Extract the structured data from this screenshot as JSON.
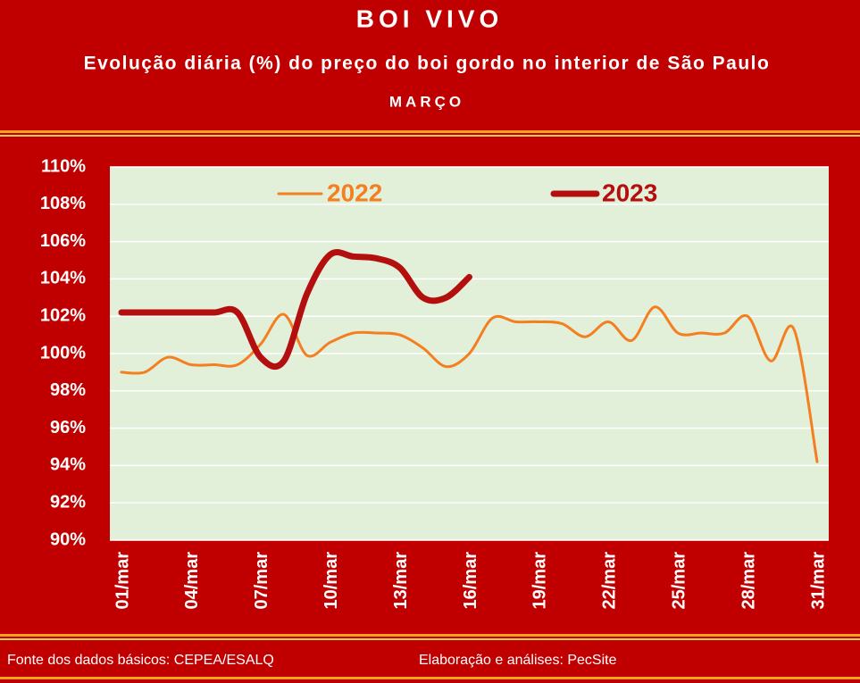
{
  "chart_data": {
    "type": "line",
    "title": "BOI VIVO",
    "subtitle": "Evolução diária (%) do preço do boi gordo no interior de São Paulo",
    "period": "MARÇO",
    "source": "Fonte dos dados básicos: CEPEA/ESALQ",
    "credit": "Elaboração e análises: PecSite",
    "categories": [
      "01/mar",
      null,
      null,
      "04/mar",
      null,
      null,
      "07/mar",
      null,
      null,
      "10/mar",
      null,
      null,
      "13/mar",
      null,
      null,
      "16/mar",
      null,
      null,
      "19/mar",
      null,
      null,
      "22/mar",
      null,
      null,
      "25/mar",
      null,
      null,
      "28/mar",
      null,
      null,
      "31/mar"
    ],
    "series": [
      {
        "name": "2022",
        "color": "#f47f20",
        "width": 3,
        "values": [
          99.0,
          99.0,
          99.8,
          99.4,
          99.4,
          99.4,
          100.5,
          102.1,
          99.9,
          100.6,
          101.1,
          101.1,
          101.0,
          100.3,
          99.3,
          100.0,
          101.9,
          101.7,
          101.7,
          101.6,
          100.9,
          101.7,
          100.7,
          102.5,
          101.1,
          101.1,
          101.1,
          102.0,
          99.6,
          101.3,
          94.2
        ]
      },
      {
        "name": "2023",
        "color": "#b40f0f",
        "width": 7,
        "values": [
          102.2,
          102.2,
          102.2,
          102.2,
          102.2,
          102.2,
          99.8,
          99.6,
          103.2,
          105.3,
          105.2,
          105.1,
          104.6,
          103.0,
          103.0,
          104.1,
          null,
          null,
          null,
          null,
          null,
          null,
          null,
          null,
          null,
          null,
          null,
          null,
          null,
          null,
          null
        ]
      }
    ],
    "ylim": [
      90,
      110
    ],
    "yticks": [
      {
        "value": 90,
        "label": "90%"
      },
      {
        "value": 92,
        "label": "92%"
      },
      {
        "value": 94,
        "label": "94%"
      },
      {
        "value": 96,
        "label": "96%"
      },
      {
        "value": 98,
        "label": "98%"
      },
      {
        "value": 100,
        "label": "100%"
      },
      {
        "value": 102,
        "label": "102%"
      },
      {
        "value": 104,
        "label": "104%"
      },
      {
        "value": 106,
        "label": "106%"
      },
      {
        "value": 108,
        "label": "108%"
      },
      {
        "value": 110,
        "label": "110%"
      }
    ],
    "grid": true
  }
}
